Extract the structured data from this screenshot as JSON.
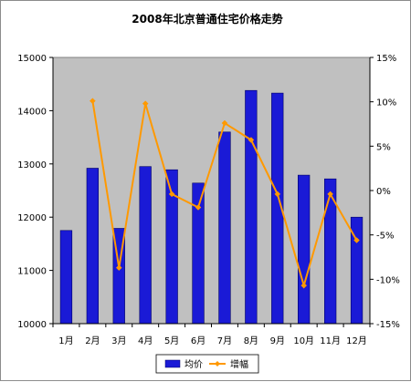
{
  "chart_data": {
    "type": "bar",
    "title": "2008年北京普通住宅价格走势",
    "categories": [
      "1月",
      "2月",
      "3月",
      "4月",
      "5月",
      "6月",
      "7月",
      "8月",
      "9月",
      "10月",
      "11月",
      "12月"
    ],
    "series": [
      {
        "name": "均价",
        "type": "bar",
        "axis": "left",
        "color": "#1a1ad6",
        "values": [
          11750,
          12920,
          11790,
          12950,
          12890,
          12640,
          13600,
          14380,
          14330,
          12790,
          12720,
          12000
        ]
      },
      {
        "name": "增幅",
        "type": "line",
        "axis": "right",
        "color": "#ff9900",
        "values": [
          null,
          10.1,
          -8.7,
          9.8,
          -0.4,
          -1.9,
          7.6,
          5.7,
          -0.4,
          -10.7,
          -0.4,
          -5.6
        ]
      }
    ],
    "y_left": {
      "min": 10000,
      "max": 15000,
      "ticks": [
        10000,
        11000,
        12000,
        13000,
        14000,
        15000
      ]
    },
    "y_right": {
      "min": -15,
      "max": 15,
      "ticks": [
        "-15%",
        "-10%",
        "-5%",
        "0%",
        "5%",
        "10%",
        "15%"
      ]
    },
    "grid": false,
    "legend_position": "bottom",
    "plot_background": "#c0c0c0"
  }
}
